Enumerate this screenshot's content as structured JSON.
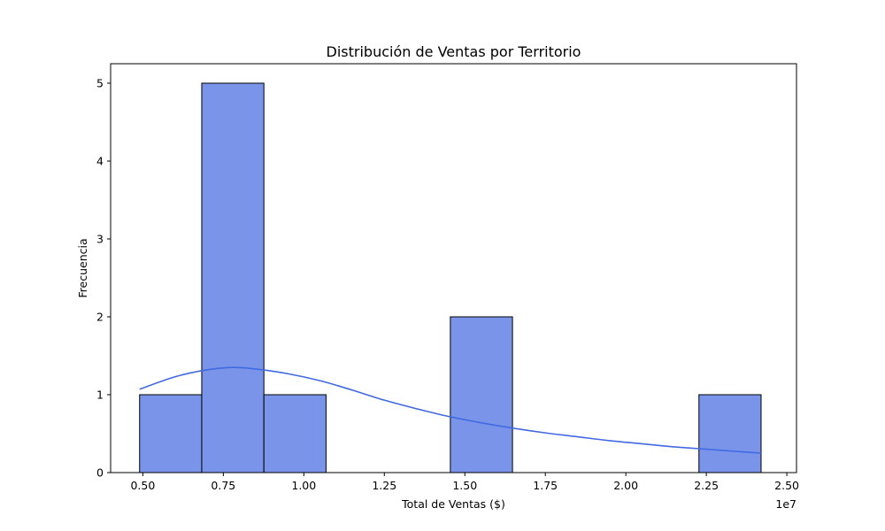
{
  "chart_data": {
    "type": "bar",
    "subtype": "histogram",
    "title": "Distribución de Ventas por Territorio",
    "xlabel": "Total de Ventas ($)",
    "ylabel": "Frecuencia",
    "x_offset_label": "1e7",
    "xlim": [
      0.4,
      2.53
    ],
    "ylim": [
      0,
      5.25
    ],
    "x_ticks": [
      0.5,
      0.75,
      1.0,
      1.25,
      1.5,
      1.75,
      2.0,
      2.25,
      2.5
    ],
    "x_tick_labels": [
      "0.50",
      "0.75",
      "1.00",
      "1.25",
      "1.50",
      "1.75",
      "2.00",
      "2.25",
      "2.50"
    ],
    "y_ticks": [
      0,
      1,
      2,
      3,
      4,
      5
    ],
    "y_tick_labels": [
      "0",
      "1",
      "2",
      "3",
      "4",
      "5"
    ],
    "bins": [
      {
        "start": 0.49,
        "end": 0.683,
        "count": 1
      },
      {
        "start": 0.683,
        "end": 0.876,
        "count": 5
      },
      {
        "start": 0.876,
        "end": 1.069,
        "count": 1
      },
      {
        "start": 1.069,
        "end": 1.262,
        "count": 0
      },
      {
        "start": 1.262,
        "end": 1.455,
        "count": 0
      },
      {
        "start": 1.455,
        "end": 1.648,
        "count": 2
      },
      {
        "start": 1.648,
        "end": 1.841,
        "count": 0
      },
      {
        "start": 1.841,
        "end": 2.034,
        "count": 0
      },
      {
        "start": 2.034,
        "end": 2.227,
        "count": 0
      },
      {
        "start": 2.227,
        "end": 2.42,
        "count": 1
      }
    ],
    "kde": {
      "x": [
        0.49,
        0.6,
        0.7,
        0.78,
        0.85,
        0.95,
        1.05,
        1.15,
        1.25,
        1.35,
        1.45,
        1.55,
        1.65,
        1.75,
        1.85,
        1.95,
        2.05,
        2.15,
        2.25,
        2.35,
        2.42
      ],
      "y": [
        1.07,
        1.23,
        1.32,
        1.35,
        1.33,
        1.27,
        1.18,
        1.06,
        0.93,
        0.82,
        0.72,
        0.64,
        0.57,
        0.51,
        0.46,
        0.41,
        0.37,
        0.33,
        0.3,
        0.27,
        0.25
      ]
    },
    "bar_color": "#7994e8",
    "bar_edge_color": "#000000",
    "kde_color": "#4169e1",
    "grid": false
  }
}
